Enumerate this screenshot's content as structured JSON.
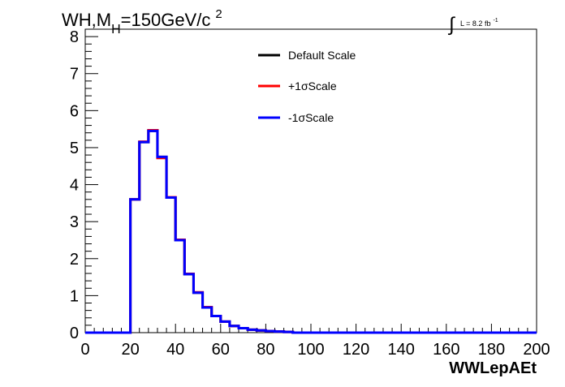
{
  "chart_data": {
    "type": "line",
    "title": "WH,M",
    "title_subscript": "H",
    "title_suffix": "=150GeV/c",
    "title_superscript": "2",
    "luminosity": {
      "integral": "∫",
      "text": "L = 8.2 fb",
      "exponent": "-1"
    },
    "xlabel": "WWLepAEt",
    "ylabel": "",
    "xlim": [
      0,
      200
    ],
    "ylim": [
      0,
      8.2
    ],
    "x_ticks": [
      0,
      20,
      40,
      60,
      80,
      100,
      120,
      140,
      160,
      180,
      200
    ],
    "y_ticks": [
      0,
      1,
      2,
      3,
      4,
      5,
      6,
      7,
      8
    ],
    "grid": false,
    "legend_position": "top-center",
    "bin_edges": [
      0,
      4,
      8,
      12,
      16,
      20,
      24,
      28,
      32,
      36,
      40,
      44,
      48,
      52,
      56,
      60,
      64,
      68,
      72,
      76,
      80,
      84,
      88,
      92,
      96,
      100,
      104,
      108,
      112,
      116,
      120,
      124,
      128,
      132,
      136,
      140,
      144,
      148,
      152,
      156,
      160,
      164,
      168,
      172,
      176,
      180,
      184,
      188,
      192,
      196,
      200
    ],
    "series": [
      {
        "name": "Default Scale",
        "color": "#000000",
        "values": [
          0,
          0,
          0,
          0,
          0,
          3.6,
          5.15,
          5.45,
          4.75,
          3.65,
          2.5,
          1.58,
          1.08,
          0.68,
          0.45,
          0.3,
          0.18,
          0.12,
          0.08,
          0.06,
          0.04,
          0.03,
          0.02,
          0,
          0,
          0,
          0,
          0,
          0,
          0,
          0,
          0,
          0,
          0,
          0,
          0,
          0,
          0,
          0,
          0,
          0,
          0,
          0,
          0,
          0,
          0,
          0,
          0,
          0,
          0
        ]
      },
      {
        "name": "+1σScale",
        "color": "#ff0000",
        "values": [
          0,
          0,
          0,
          0,
          0,
          3.6,
          5.16,
          5.47,
          4.72,
          3.66,
          2.51,
          1.59,
          1.09,
          0.69,
          0.45,
          0.3,
          0.18,
          0.12,
          0.08,
          0.06,
          0.04,
          0.03,
          0.02,
          0,
          0,
          0,
          0,
          0,
          0,
          0,
          0,
          0,
          0,
          0,
          0,
          0,
          0,
          0,
          0,
          0,
          0,
          0,
          0,
          0,
          0,
          0,
          0,
          0,
          0,
          0
        ]
      },
      {
        "name": "-1σScale",
        "color": "#0000ff",
        "values": [
          0,
          0,
          0,
          0,
          0,
          3.6,
          5.15,
          5.45,
          4.75,
          3.65,
          2.5,
          1.58,
          1.08,
          0.68,
          0.45,
          0.3,
          0.18,
          0.12,
          0.08,
          0.06,
          0.04,
          0.03,
          0.02,
          0,
          0,
          0,
          0,
          0,
          0,
          0,
          0,
          0,
          0,
          0,
          0,
          0,
          0,
          0,
          0,
          0,
          0,
          0,
          0,
          0,
          0,
          0,
          0,
          0,
          0,
          0
        ]
      }
    ]
  }
}
